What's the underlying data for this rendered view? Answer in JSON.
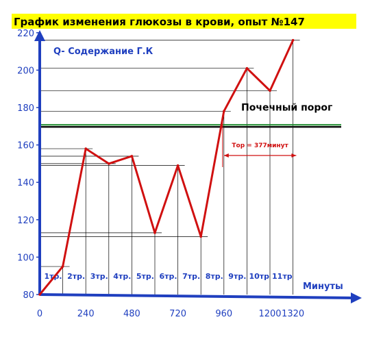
{
  "chart_data": {
    "type": "line",
    "title": "График изменения глюкозы в крови, опыт №147",
    "ylabel": "Q- Содержание Г.К",
    "xlabel": "Минуты",
    "x_ticks": [
      "0",
      "240",
      "480",
      "720",
      "960",
      "1200",
      "1320"
    ],
    "y_ticks": [
      "80",
      "100",
      "120",
      "140",
      "160",
      "180",
      "200",
      "220"
    ],
    "ylim": [
      80,
      220
    ],
    "series": [
      {
        "x": [
          0,
          120,
          240,
          360,
          480,
          600,
          720,
          840,
          960,
          1080,
          1200,
          1320
        ],
        "values": [
          80,
          95,
          158,
          150,
          154,
          113,
          149,
          111,
          178,
          201,
          189,
          216
        ]
      }
    ],
    "point_labels": [
      "1тр.",
      "2тр.",
      "3тр.",
      "4тр.",
      "5тр.",
      "6тр.",
      "7тр.",
      "8тр.",
      "9тр.",
      "10тр",
      "11тр"
    ],
    "threshold": {
      "value": 170,
      "label": "Почечный порог"
    },
    "annotation": {
      "label": "Тор = 377минут",
      "x_start": 960,
      "x_end": 1337
    },
    "colors": {
      "line": "#d01010",
      "axes": "#1f3fbf",
      "grid": "#000000",
      "title_bg": "#ffff00"
    }
  }
}
